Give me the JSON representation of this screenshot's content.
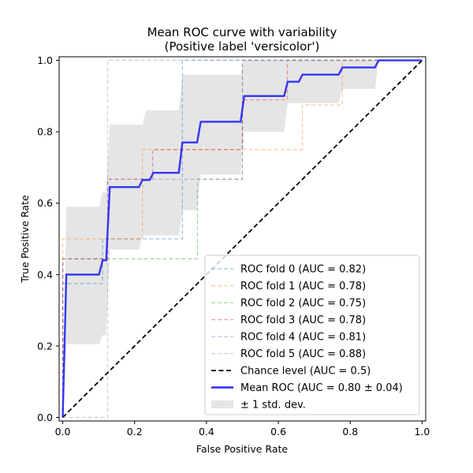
{
  "chart_data": {
    "type": "line",
    "title": "Mean ROC curve with variability",
    "subtitle": "(Positive label 'versicolor')",
    "xlabel": "False Positive Rate",
    "ylabel": "True Positive Rate",
    "xlim": [
      -0.01,
      1.01
    ],
    "ylim": [
      -0.01,
      1.01
    ],
    "xticks": [
      "0.0",
      "0.2",
      "0.4",
      "0.6",
      "0.8",
      "1.0"
    ],
    "yticks": [
      "0.0",
      "0.2",
      "0.4",
      "0.6",
      "0.8",
      "1.0"
    ],
    "grid": false,
    "legend_position": "lower-right",
    "folds": [
      {
        "name": "ROC fold 0 (AUC = 0.82)",
        "color": "#1f77b4",
        "points": [
          [
            0,
            0
          ],
          [
            0,
            0.375
          ],
          [
            0.111,
            0.375
          ],
          [
            0.111,
            0.5
          ],
          [
            0.333,
            0.5
          ],
          [
            0.333,
            1.0
          ],
          [
            1.0,
            1.0
          ]
        ]
      },
      {
        "name": "ROC fold 1 (AUC = 0.78)",
        "color": "#ff7f0e",
        "points": [
          [
            0,
            0
          ],
          [
            0,
            0.5
          ],
          [
            0.222,
            0.5
          ],
          [
            0.222,
            0.75
          ],
          [
            0.667,
            0.75
          ],
          [
            0.667,
            0.875
          ],
          [
            0.778,
            0.875
          ],
          [
            0.778,
            1.0
          ],
          [
            1.0,
            1.0
          ]
        ]
      },
      {
        "name": "ROC fold 2 (AUC = 0.75)",
        "color": "#2ca02c",
        "points": [
          [
            0,
            0
          ],
          [
            0,
            0.444
          ],
          [
            0.125,
            0.444
          ],
          [
            0.375,
            0.444
          ],
          [
            0.375,
            0.667
          ],
          [
            0.5,
            0.667
          ],
          [
            0.5,
            1.0
          ],
          [
            1.0,
            1.0
          ]
        ]
      },
      {
        "name": "ROC fold 3 (AUC = 0.78)",
        "color": "#d62728",
        "points": [
          [
            0,
            0
          ],
          [
            0,
            0.444
          ],
          [
            0.125,
            0.444
          ],
          [
            0.125,
            0.667
          ],
          [
            0.25,
            0.667
          ],
          [
            0.25,
            0.75
          ],
          [
            0.5,
            0.75
          ],
          [
            0.5,
            0.889
          ],
          [
            0.625,
            0.889
          ],
          [
            0.625,
            1.0
          ],
          [
            1.0,
            1.0
          ]
        ]
      },
      {
        "name": "ROC fold 4 (AUC = 0.81)",
        "color": "#9467bd",
        "points": [
          [
            0,
            0
          ],
          [
            0,
            0.444
          ],
          [
            0.125,
            0.444
          ],
          [
            0.125,
            0.667
          ],
          [
            0.5,
            0.667
          ],
          [
            0.5,
            1.0
          ],
          [
            1.0,
            1.0
          ]
        ]
      },
      {
        "name": "ROC fold 5 (AUC = 0.88)",
        "color": "#8c8cc0",
        "points": [
          [
            0,
            0
          ],
          [
            0.125,
            0
          ],
          [
            0.125,
            0.625
          ],
          [
            0.125,
            1.0
          ],
          [
            1.0,
            1.0
          ]
        ]
      }
    ],
    "chance": {
      "name": "Chance level (AUC = 0.5)",
      "color": "#000000",
      "points": [
        [
          0,
          0
        ],
        [
          1,
          1
        ]
      ]
    },
    "mean": {
      "name": "Mean ROC (AUC = 0.80 ± 0.04)",
      "color": "#2b2bf5",
      "points": [
        [
          0,
          0
        ],
        [
          0.01,
          0.4
        ],
        [
          0.101,
          0.4
        ],
        [
          0.111,
          0.44
        ],
        [
          0.121,
          0.44
        ],
        [
          0.131,
          0.645
        ],
        [
          0.212,
          0.645
        ],
        [
          0.222,
          0.665
        ],
        [
          0.242,
          0.665
        ],
        [
          0.252,
          0.685
        ],
        [
          0.323,
          0.685
        ],
        [
          0.333,
          0.77
        ],
        [
          0.374,
          0.77
        ],
        [
          0.384,
          0.828
        ],
        [
          0.495,
          0.828
        ],
        [
          0.505,
          0.9
        ],
        [
          0.616,
          0.9
        ],
        [
          0.626,
          0.94
        ],
        [
          0.657,
          0.94
        ],
        [
          0.667,
          0.96
        ],
        [
          0.768,
          0.96
        ],
        [
          0.778,
          0.98
        ],
        [
          0.869,
          0.98
        ],
        [
          0.879,
          1.0
        ],
        [
          1.0,
          1.0
        ]
      ]
    },
    "std_band": {
      "name": "± 1 std. dev.",
      "color": "#d3d3d3",
      "upper": [
        [
          0,
          0
        ],
        [
          0.01,
          0.59
        ],
        [
          0.101,
          0.59
        ],
        [
          0.111,
          0.63
        ],
        [
          0.121,
          0.63
        ],
        [
          0.131,
          0.82
        ],
        [
          0.222,
          0.82
        ],
        [
          0.232,
          0.86
        ],
        [
          0.323,
          0.86
        ],
        [
          0.333,
          0.96
        ],
        [
          0.495,
          0.96
        ],
        [
          0.505,
          1.0
        ],
        [
          1.0,
          1.0
        ]
      ],
      "lower": [
        [
          0,
          0
        ],
        [
          0.01,
          0.205
        ],
        [
          0.101,
          0.205
        ],
        [
          0.111,
          0.23
        ],
        [
          0.121,
          0.23
        ],
        [
          0.131,
          0.47
        ],
        [
          0.212,
          0.47
        ],
        [
          0.222,
          0.51
        ],
        [
          0.242,
          0.51
        ],
        [
          0.252,
          0.51
        ],
        [
          0.323,
          0.51
        ],
        [
          0.333,
          0.58
        ],
        [
          0.374,
          0.58
        ],
        [
          0.384,
          0.68
        ],
        [
          0.495,
          0.68
        ],
        [
          0.505,
          0.8
        ],
        [
          0.616,
          0.8
        ],
        [
          0.626,
          0.88
        ],
        [
          0.768,
          0.88
        ],
        [
          0.778,
          0.92
        ],
        [
          0.869,
          0.92
        ],
        [
          0.879,
          1.0
        ],
        [
          1.0,
          1.0
        ]
      ]
    }
  }
}
